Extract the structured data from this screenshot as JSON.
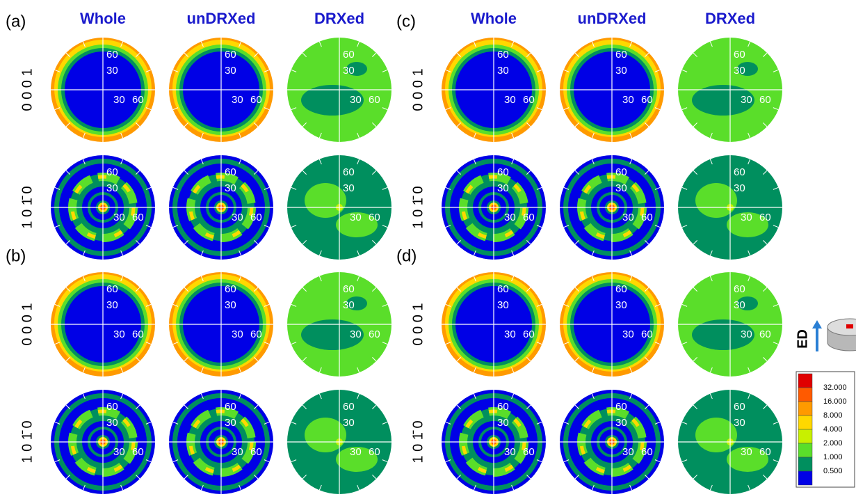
{
  "columns": [
    "Whole",
    "unDRXed",
    "DRXed"
  ],
  "panels": [
    "(a)",
    "(b)",
    "(c)",
    "(d)"
  ],
  "rows": [
    "0 0 0 1",
    "1 0 1̄ 0"
  ],
  "angle_labels": [
    "60",
    "30",
    "30",
    "60"
  ],
  "specimen_axis": "ED",
  "legend": {
    "labels": [
      "32.000",
      "16.000",
      "8.000",
      "4.000",
      "2.000",
      "1.000",
      "0.500"
    ],
    "colors": [
      "#e00000",
      "#ff5a00",
      "#ff9a00",
      "#ffd800",
      "#c8f000",
      "#5ade2a",
      "#008f5e",
      "#0000e6"
    ]
  }
}
